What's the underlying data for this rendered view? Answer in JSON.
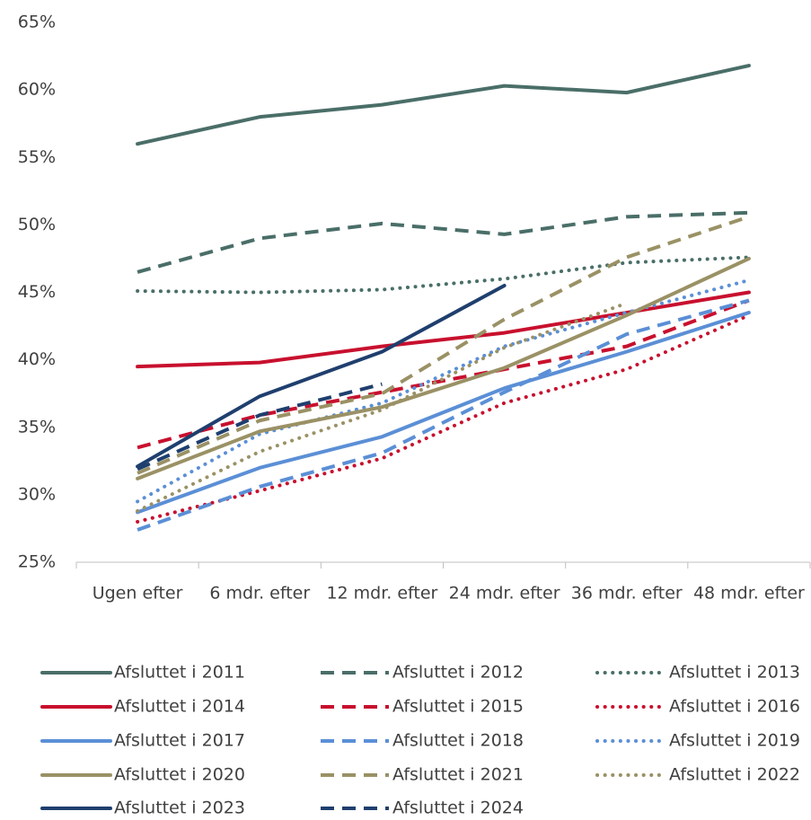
{
  "chart_data": {
    "type": "line",
    "categories": [
      "Ugen efter",
      "6 mdr. efter",
      "12 mdr. efter",
      "24 mdr. efter",
      "36 mdr. efter",
      "48 mdr. efter"
    ],
    "ylim": [
      25,
      65
    ],
    "yticks": [
      {
        "value": 25,
        "label": "25%"
      },
      {
        "value": 30,
        "label": "30%"
      },
      {
        "value": 35,
        "label": "35%"
      },
      {
        "value": 40,
        "label": "40%"
      },
      {
        "value": 45,
        "label": "45%"
      },
      {
        "value": 50,
        "label": "50%"
      },
      {
        "value": 55,
        "label": "55%"
      },
      {
        "value": 60,
        "label": "60%"
      },
      {
        "value": 65,
        "label": "65%"
      }
    ],
    "grid": false,
    "series": [
      {
        "name": "Afsluttet i 2011",
        "color": "#4a6e68",
        "style": "solid",
        "values": [
          56.0,
          58.0,
          58.9,
          60.3,
          59.8,
          61.8
        ]
      },
      {
        "name": "Afsluttet i 2012",
        "color": "#4a6e68",
        "style": "dashed",
        "values": [
          46.5,
          49.0,
          50.1,
          49.3,
          50.6,
          50.9
        ]
      },
      {
        "name": "Afsluttet i 2013",
        "color": "#4a6e68",
        "style": "dotted",
        "values": [
          45.1,
          45.0,
          45.2,
          46.0,
          47.2,
          47.6
        ]
      },
      {
        "name": "Afsluttet i 2014",
        "color": "#c8102e",
        "style": "solid",
        "values": [
          39.5,
          39.8,
          41.0,
          42.0,
          43.5,
          45.0
        ]
      },
      {
        "name": "Afsluttet i 2015",
        "color": "#c8102e",
        "style": "dashed",
        "values": [
          33.5,
          35.9,
          37.6,
          39.3,
          41.0,
          44.4
        ]
      },
      {
        "name": "Afsluttet i 2016",
        "color": "#c8102e",
        "style": "dotted",
        "values": [
          28.0,
          30.3,
          32.7,
          36.8,
          39.3,
          43.3
        ]
      },
      {
        "name": "Afsluttet i 2017",
        "color": "#5b8fd6",
        "style": "solid",
        "values": [
          28.7,
          32.0,
          34.3,
          37.9,
          40.6,
          43.5
        ]
      },
      {
        "name": "Afsluttet i 2018",
        "color": "#5b8fd6",
        "style": "dashed",
        "values": [
          27.4,
          30.6,
          33.1,
          37.6,
          41.9,
          44.4
        ]
      },
      {
        "name": "Afsluttet i 2019",
        "color": "#5b8fd6",
        "style": "dotted",
        "values": [
          29.5,
          34.5,
          36.8,
          41.0,
          43.5,
          45.9
        ]
      },
      {
        "name": "Afsluttet i 2020",
        "color": "#9a9165",
        "style": "solid",
        "values": [
          31.2,
          34.7,
          36.5,
          39.4,
          43.3,
          47.5
        ]
      },
      {
        "name": "Afsluttet i 2021",
        "color": "#9a9165",
        "style": "dashed",
        "values": [
          31.6,
          35.5,
          37.5,
          43.0,
          47.6,
          50.6
        ]
      },
      {
        "name": "Afsluttet i 2022",
        "color": "#9a9165",
        "style": "dotted",
        "values": [
          28.8,
          33.2,
          36.3,
          40.9,
          44.2,
          null
        ]
      },
      {
        "name": "Afsluttet i 2023",
        "color": "#1f3f6e",
        "style": "solid",
        "values": [
          32.1,
          37.3,
          40.6,
          45.5,
          null,
          null
        ]
      },
      {
        "name": "Afsluttet i 2024",
        "color": "#1f3f6e",
        "style": "dashed",
        "values": [
          31.9,
          35.9,
          38.2,
          null,
          null,
          null
        ]
      }
    ]
  }
}
